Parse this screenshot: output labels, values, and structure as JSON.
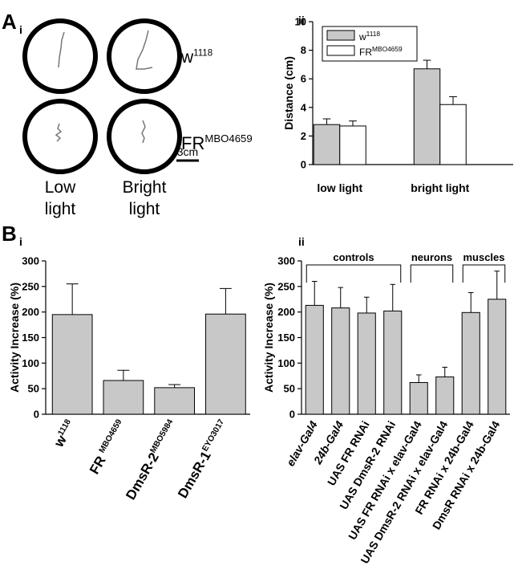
{
  "panel_labels": [
    "A",
    "i",
    "ii",
    "B",
    "i",
    "ii"
  ],
  "image_panel": {
    "genotypes": [
      {
        "text": "w",
        "sup": "1118"
      },
      {
        "text": "FR",
        "sup": "MBO4659"
      }
    ],
    "scale_bar": "3cm",
    "conditions": [
      [
        "Low",
        "light"
      ],
      [
        "Bright",
        "light"
      ]
    ]
  },
  "chart_data": [
    {
      "type": "bar",
      "y_label": "Distance (cm)",
      "categories": [
        "low light",
        "bright light"
      ],
      "series": [
        {
          "name": {
            "text": "w",
            "sup": "1118"
          },
          "color": "#c8c8c8",
          "values": [
            2.8,
            6.7
          ],
          "errors": [
            0.4,
            0.6
          ]
        },
        {
          "name": {
            "text": "FR",
            "sup": "MBO4659"
          },
          "color": "#ffffff",
          "values": [
            2.7,
            4.2
          ],
          "errors": [
            0.35,
            0.55
          ]
        }
      ],
      "ylim": [
        0,
        10
      ],
      "yticks": [
        0,
        2,
        4,
        6,
        8,
        10
      ],
      "legend": "top-left"
    },
    {
      "type": "bar",
      "y_label": "Activity Increase (%)",
      "categories": [
        {
          "text": "w",
          "sup": "1118"
        },
        {
          "text": "FR ",
          "sup": "MBO4659"
        },
        {
          "text": "DmsR-2",
          "sup": "MBO5984"
        },
        {
          "text": "DmsR-1",
          "sup": "EYO3017"
        }
      ],
      "series": [
        {
          "color": "#c8c8c8",
          "values": [
            195,
            66,
            52,
            196
          ],
          "errors": [
            60,
            20,
            6,
            50
          ]
        }
      ],
      "ylim": [
        0,
        300
      ],
      "yticks": [
        0,
        50,
        100,
        150,
        200,
        250,
        300
      ]
    },
    {
      "type": "bar",
      "y_label": "Activity Increase (%)",
      "categories": [
        "elav-Gal4",
        "24b-Gal4",
        "UAS FR RNAi",
        "UAS DmsR-2 RNAi",
        "UAS FR RNAi x elav-Gal4",
        "UAS DmsR-2 RNAi x elav-Gal4",
        "FR RNAi x 24b-Gal4",
        "DmsR RNAi x 24b-Gal4"
      ],
      "italic_categories": [
        true,
        true,
        false,
        false,
        false,
        false,
        false,
        false
      ],
      "groups": [
        "controls",
        "neurons",
        "muscles"
      ],
      "series": [
        {
          "color": "#c8c8c8",
          "values": [
            213,
            208,
            198,
            202,
            62,
            73,
            199,
            225
          ],
          "errors": [
            47,
            40,
            31,
            52,
            15,
            19,
            39,
            55
          ]
        }
      ],
      "ylim": [
        0,
        300
      ],
      "yticks": [
        0,
        50,
        100,
        150,
        200,
        250,
        300
      ]
    }
  ]
}
